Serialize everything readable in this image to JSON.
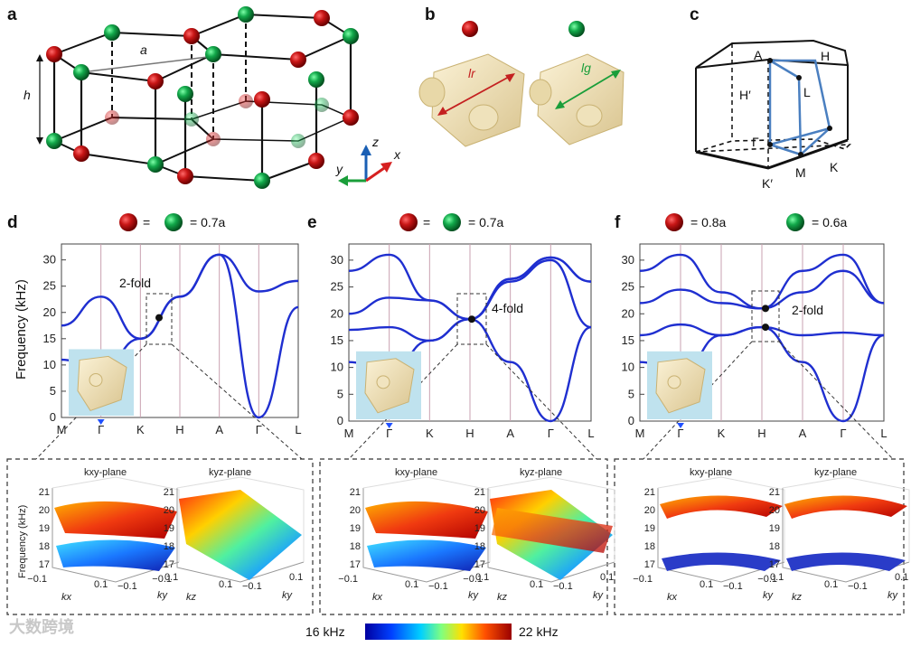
{
  "panels": {
    "a": {
      "label": "a",
      "lattice_constant": "a",
      "height": "h",
      "axes": {
        "z": "z",
        "x": "x",
        "y": "y"
      }
    },
    "b": {
      "label": "b",
      "length_red": "lr",
      "length_green": "lg"
    },
    "c": {
      "label": "c",
      "points": [
        "A",
        "H",
        "H′",
        "L",
        "Γ",
        "K",
        "M",
        "K′"
      ]
    },
    "d": {
      "label": "d",
      "legend": "= 0.7a",
      "annotation": "2-fold"
    },
    "e": {
      "label": "e",
      "legend": "= 0.7a",
      "annotation": "4-fold"
    },
    "f": {
      "label": "f",
      "legend_red": "= 0.8a",
      "legend_green": "= 0.6a",
      "annotation": "2-fold"
    }
  },
  "axis": {
    "ylabel": "Frequency (kHz)",
    "yticks": [
      "0",
      "5",
      "10",
      "15",
      "20",
      "25",
      "30"
    ],
    "xticks": [
      "M",
      "Γ",
      "K",
      "H",
      "A",
      "Γ",
      "L"
    ]
  },
  "insets": {
    "plane_xy": "kxy-plane",
    "plane_yz": "kyz-plane",
    "zlabel": "Frequency (kHz)",
    "zticks": [
      "21",
      "20",
      "19",
      "18",
      "17"
    ],
    "tick_neg": "−0.1",
    "tick_pos": "0.1",
    "kx": "kx",
    "ky": "ky",
    "kz": "kz"
  },
  "colorbar": {
    "min_label": "16 kHz",
    "max_label": "22 kHz"
  },
  "watermark": "大数跨境",
  "chart_data": [
    {
      "type": "line",
      "title": "d",
      "ylabel": "Frequency (kHz)",
      "ylim": [
        0,
        32
      ],
      "x": [
        "M",
        "Γ",
        "K",
        "H",
        "A",
        "Γ",
        "L"
      ],
      "series": [
        {
          "name": "band1",
          "values": [
            11,
            9,
            15,
            23,
            31,
            0,
            21
          ]
        },
        {
          "name": "band2",
          "values": [
            17.5,
            23,
            15,
            23,
            31,
            24,
            26
          ]
        }
      ],
      "degeneracy": {
        "label": "2-fold",
        "at": "K-H",
        "frequency": 19
      }
    },
    {
      "type": "line",
      "title": "e",
      "ylabel": "Frequency (kHz)",
      "ylim": [
        0,
        32
      ],
      "x": [
        "M",
        "Γ",
        "K",
        "H",
        "A",
        "Γ",
        "L"
      ],
      "series": [
        {
          "name": "band1",
          "values": [
            11,
            9,
            15,
            19,
            11,
            0,
            17.5
          ]
        },
        {
          "name": "band2",
          "values": [
            17,
            17.5,
            15,
            19,
            26,
            30,
            17.5
          ]
        },
        {
          "name": "band3",
          "values": [
            20,
            23,
            22.5,
            19,
            26.5,
            30.5,
            26
          ]
        },
        {
          "name": "band4",
          "values": [
            28,
            31,
            22.5,
            19,
            26.5,
            30.5,
            26
          ]
        }
      ],
      "degeneracy": {
        "label": "4-fold",
        "at": "H",
        "frequency": 19
      }
    },
    {
      "type": "line",
      "title": "f",
      "ylabel": "Frequency (kHz)",
      "ylim": [
        0,
        32
      ],
      "x": [
        "M",
        "Γ",
        "K",
        "H",
        "A",
        "Γ",
        "L"
      ],
      "series": [
        {
          "name": "band1",
          "values": [
            11,
            9,
            16,
            17.5,
            11,
            0,
            16
          ]
        },
        {
          "name": "band2",
          "values": [
            16,
            18,
            16,
            17.5,
            16,
            16.5,
            16
          ]
        },
        {
          "name": "band3",
          "values": [
            22,
            24.5,
            22,
            21,
            24,
            28,
            22
          ]
        },
        {
          "name": "band4",
          "values": [
            28,
            31,
            24,
            21,
            28,
            31,
            22
          ]
        }
      ],
      "degeneracy": {
        "label": "2-fold",
        "at": "H",
        "frequency": [
          17.5,
          21
        ]
      }
    }
  ]
}
